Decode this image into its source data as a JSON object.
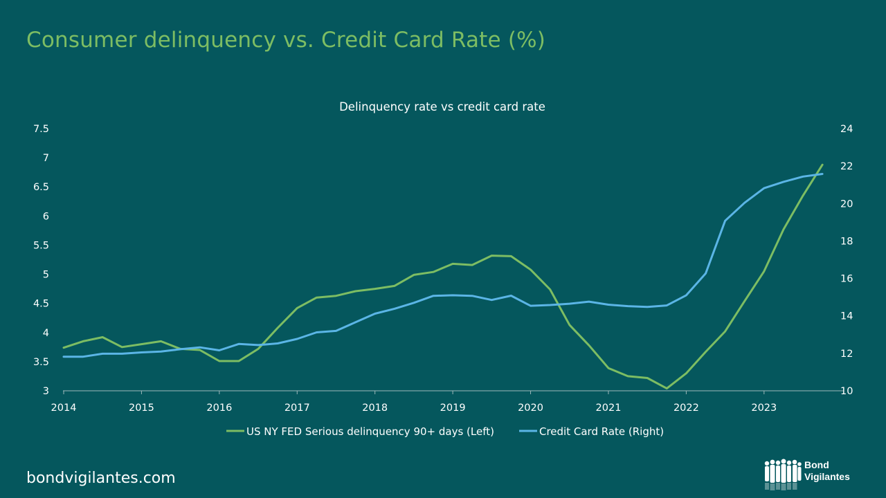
{
  "page": {
    "title": "Consumer delinquency vs. Credit Card Rate (%)",
    "footer_site": "bondvigilantes.com",
    "logo_lines": [
      "Bond",
      "Vigilantes"
    ]
  },
  "colors": {
    "background": "#05575d",
    "title": "#7dbd63",
    "series_left": "#7dbd63",
    "series_right": "#5bb5e6",
    "text": "#ffffff"
  },
  "chart_data": {
    "type": "line",
    "title": "Delinquency rate vs credit card rate",
    "legend_position": "bottom",
    "grid": false,
    "x_ticks": [
      "2014",
      "2015",
      "2016",
      "2017",
      "2018",
      "2019",
      "2020",
      "2021",
      "2022",
      "2023"
    ],
    "y_left": {
      "ylim": [
        3,
        7.5
      ],
      "ticks": [
        "3",
        "3.5",
        "4",
        "4.5",
        "5",
        "5.5",
        "6",
        "6.5",
        "7",
        "7.5"
      ]
    },
    "y_right": {
      "ylim": [
        10,
        24
      ],
      "ticks": [
        "10",
        "12",
        "14",
        "16",
        "18",
        "20",
        "22",
        "24"
      ]
    },
    "x": [
      2014.0,
      2014.25,
      2014.5,
      2014.75,
      2015.0,
      2015.25,
      2015.5,
      2015.75,
      2016.0,
      2016.25,
      2016.5,
      2016.75,
      2017.0,
      2017.25,
      2017.5,
      2017.75,
      2018.0,
      2018.25,
      2018.5,
      2018.75,
      2019.0,
      2019.25,
      2019.5,
      2019.75,
      2020.0,
      2020.25,
      2020.5,
      2020.75,
      2021.0,
      2021.25,
      2021.5,
      2021.75,
      2022.0,
      2022.25,
      2022.5,
      2022.75,
      2023.0,
      2023.25,
      2023.5,
      2023.75
    ],
    "series": [
      {
        "name": "US NY FED Serious delinquency 90+ days (Left)",
        "axis": "left",
        "color": "#7dbd63",
        "values": [
          3.74,
          3.85,
          3.92,
          3.75,
          3.8,
          3.85,
          3.72,
          3.7,
          3.51,
          3.51,
          3.72,
          4.08,
          4.42,
          4.6,
          4.63,
          4.71,
          4.75,
          4.8,
          4.99,
          5.04,
          5.18,
          5.16,
          5.32,
          5.31,
          5.08,
          4.74,
          4.13,
          3.78,
          3.39,
          3.25,
          3.22,
          3.04,
          3.3,
          3.67,
          4.02,
          4.54,
          5.05,
          5.77,
          6.35,
          6.88
        ]
      },
      {
        "name": "Credit Card Rate (Right)",
        "axis": "right",
        "color": "#5bb5e6",
        "values": [
          11.82,
          11.82,
          11.98,
          11.98,
          12.05,
          12.1,
          12.22,
          12.32,
          12.16,
          12.5,
          12.44,
          12.53,
          12.77,
          13.12,
          13.2,
          13.66,
          14.12,
          14.38,
          14.7,
          15.07,
          15.1,
          15.07,
          14.85,
          15.08,
          14.54,
          14.58,
          14.65,
          14.76,
          14.6,
          14.52,
          14.48,
          14.56,
          15.1,
          16.27,
          19.08,
          20.04,
          20.82,
          21.16,
          21.44,
          21.58
        ]
      }
    ]
  }
}
